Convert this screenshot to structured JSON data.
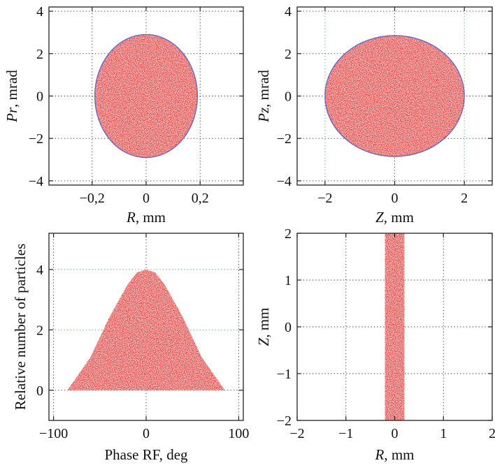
{
  "colors": {
    "particles": "#e8322e",
    "envelope": "#6a62c8",
    "green_grid": "#4aa86a"
  },
  "chart_data": [
    {
      "id": "pr-vs-r",
      "type": "scatter",
      "xlabel_var": "R",
      "xlabel_unit": ", mm",
      "ylabel_var": "Pr",
      "ylabel_unit": ", mrad",
      "xlim": [
        -0.36,
        0.36
      ],
      "ylim": [
        -4.2,
        4.2
      ],
      "xticks": [
        -0.2,
        0,
        0.2
      ],
      "xticklabels": [
        "−0,2",
        "0",
        "0,2"
      ],
      "yticks": [
        -4,
        -2,
        0,
        2,
        4
      ],
      "yticklabels": [
        "−4",
        "−2",
        "0",
        "2",
        "4"
      ],
      "distribution": {
        "shape": "ellipse",
        "center": [
          0,
          0
        ],
        "semi_axis_x": 0.19,
        "semi_axis_y": 2.9
      }
    },
    {
      "id": "pz-vs-z",
      "type": "scatter",
      "xlabel_var": "Z",
      "xlabel_unit": ", mm",
      "ylabel_var": "Pz",
      "ylabel_unit": ", mrad",
      "xlim": [
        -2.8,
        2.8
      ],
      "ylim": [
        -4.2,
        4.2
      ],
      "xticks": [
        -2,
        0,
        2
      ],
      "xticklabels": [
        "−2",
        "0",
        "2"
      ],
      "yticks": [
        -4,
        -2,
        0,
        2,
        4
      ],
      "yticklabels": [
        "−4",
        "−2",
        "0",
        "2",
        "4"
      ],
      "distribution": {
        "shape": "ellipse",
        "center": [
          0,
          0
        ],
        "semi_axis_x": 2.0,
        "semi_axis_y": 2.85
      }
    },
    {
      "id": "phase-histogram",
      "type": "area",
      "xlabel": "Phase RF, deg",
      "ylabel": "Relative number of particles",
      "xlim": [
        -105,
        105
      ],
      "ylim": [
        -1.0,
        5.2
      ],
      "xticks": [
        -100,
        0,
        100
      ],
      "xticklabels": [
        "−100",
        "0",
        "100"
      ],
      "yticks": [
        0,
        2,
        4
      ],
      "yticklabels": [
        "0",
        "2",
        "4"
      ],
      "x": [
        -85,
        -60,
        -40,
        -20,
        -10,
        0,
        10,
        20,
        40,
        60,
        85
      ],
      "y": [
        0,
        1.1,
        2.4,
        3.5,
        3.9,
        4.0,
        3.9,
        3.5,
        2.4,
        1.1,
        0
      ]
    },
    {
      "id": "z-vs-r",
      "type": "scatter",
      "xlabel_var": "R",
      "xlabel_unit": ", mm",
      "ylabel_var": "Z",
      "ylabel_unit": ", mm",
      "xlim": [
        -2.0,
        2.0
      ],
      "ylim": [
        -2.0,
        2.0
      ],
      "xticks": [
        -2,
        -1,
        0,
        1,
        2
      ],
      "xticklabels": [
        "−2",
        "−1",
        "0",
        "1",
        "2"
      ],
      "yticks": [
        -2,
        -1,
        0,
        1,
        2
      ],
      "yticklabels": [
        "−2",
        "−1",
        "0",
        "1",
        "2"
      ],
      "distribution": {
        "shape": "band",
        "x_range": [
          -0.2,
          0.2
        ],
        "y_range": [
          -2.0,
          2.0
        ]
      }
    }
  ]
}
